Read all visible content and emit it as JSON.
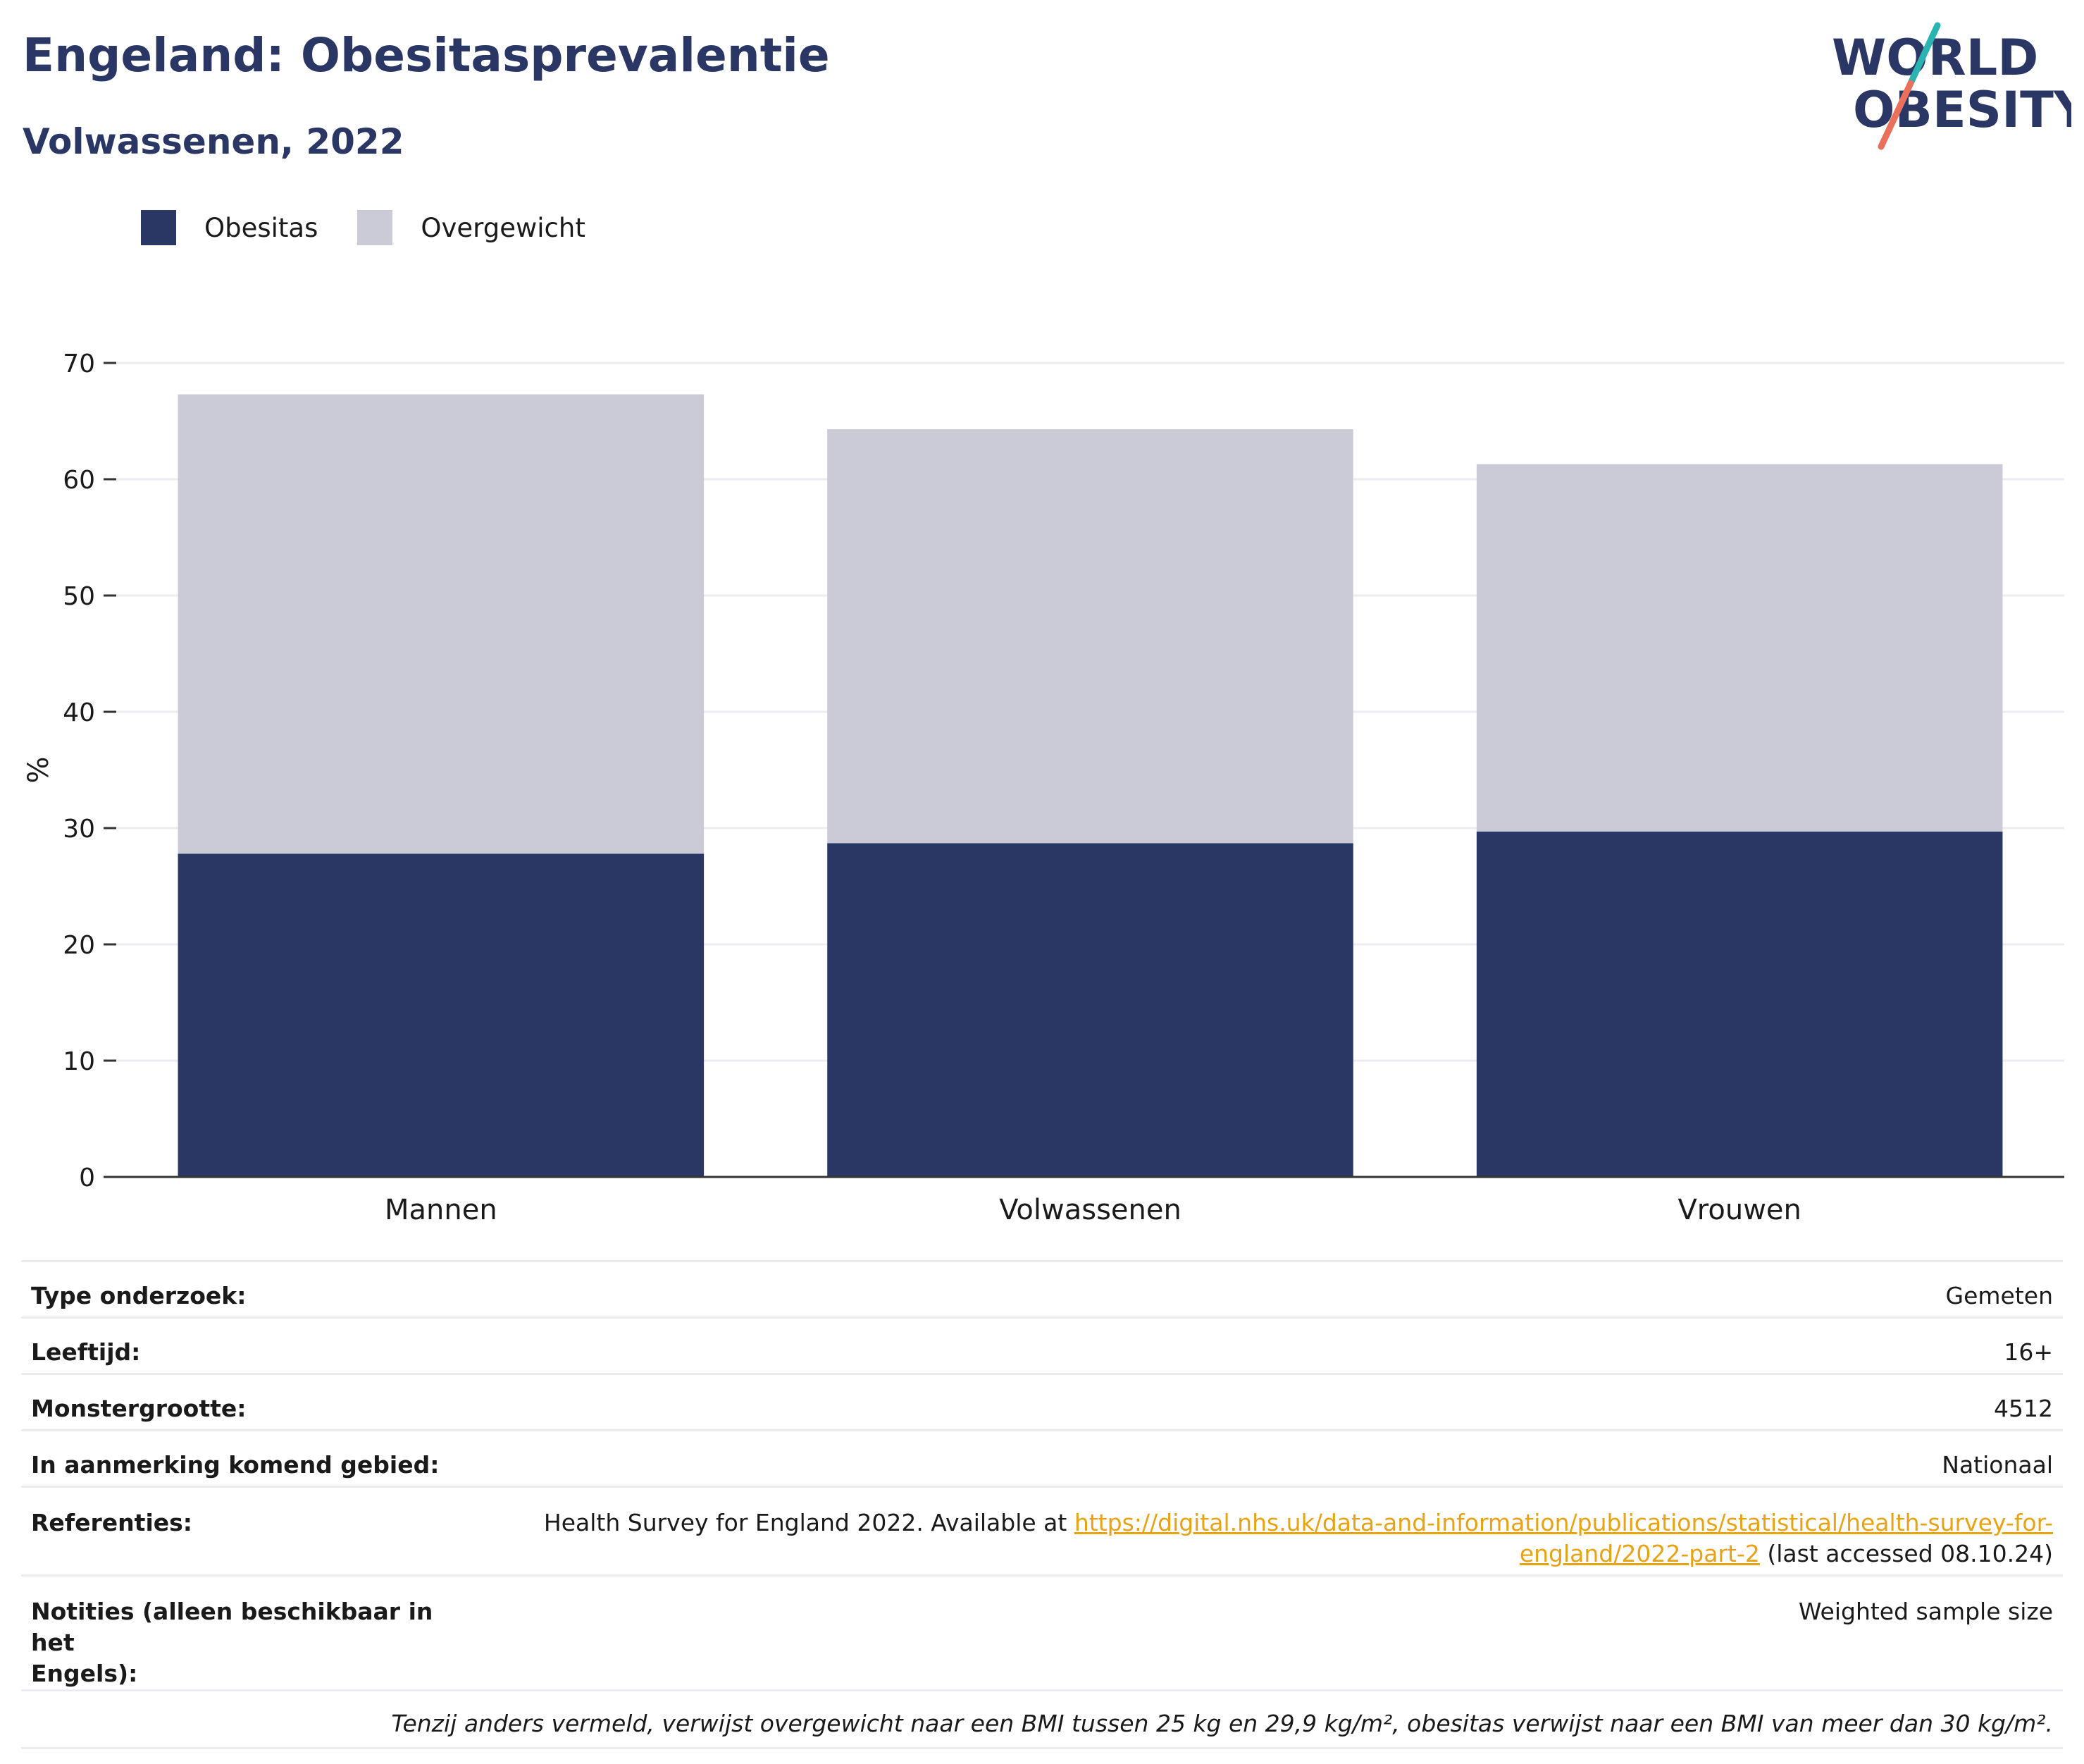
{
  "header": {
    "title": "Engeland: Obesitasprevalentie",
    "subtitle": "Volwassenen, 2022"
  },
  "logo": {
    "line1": "WORLD",
    "line2": "OBESITY",
    "colors": {
      "text": "#2a3663",
      "teal": "#2bb3b1",
      "coral": "#e9705b"
    }
  },
  "legend": [
    {
      "label": "Obesitas",
      "color": "#2a3663"
    },
    {
      "label": "Overgewicht",
      "color": "#cacbd7"
    }
  ],
  "chart_data": {
    "type": "bar",
    "stacked": true,
    "categories": [
      "Mannen",
      "Volwassenen",
      "Vrouwen"
    ],
    "series": [
      {
        "name": "Obesitas",
        "values": [
          27.8,
          28.7,
          29.7
        ],
        "color": "#2a3663"
      },
      {
        "name": "Overgewicht",
        "values": [
          39.5,
          35.6,
          31.6
        ],
        "color": "#cacbd7"
      }
    ],
    "ylabel": "%",
    "ylim": [
      0,
      70
    ],
    "yticks": [
      0,
      10,
      20,
      30,
      40,
      50,
      60,
      70
    ],
    "grid": true,
    "legend_position": "top-left"
  },
  "info": {
    "type_label": "Type onderzoek:",
    "type_value": "Gemeten",
    "age_label": "Leeftijd:",
    "age_value": "16+",
    "sample_label": "Monstergrootte:",
    "sample_value": "4512",
    "area_label": "In aanmerking komend gebied:",
    "area_value": "Nationaal",
    "ref_label": "Referenties:",
    "ref_text_before": "Health Survey for England 2022. Available at ",
    "ref_link_1": "https://digital.nhs.uk/data-and-information/publications/statistical/health-survey-for-",
    "ref_link_2": "england/2022-part-2",
    "ref_text_after": " (last accessed 08.10.24)",
    "notes_label_1": "Notities (alleen beschikbaar in het",
    "notes_label_2": "Engels):",
    "notes_value": "Weighted sample size",
    "footnote": "Tenzij anders vermeld, verwijst overgewicht naar een BMI tussen 25 kg en 29,9 kg/m², obesitas verwijst naar een BMI van meer dan 30 kg/m²."
  }
}
